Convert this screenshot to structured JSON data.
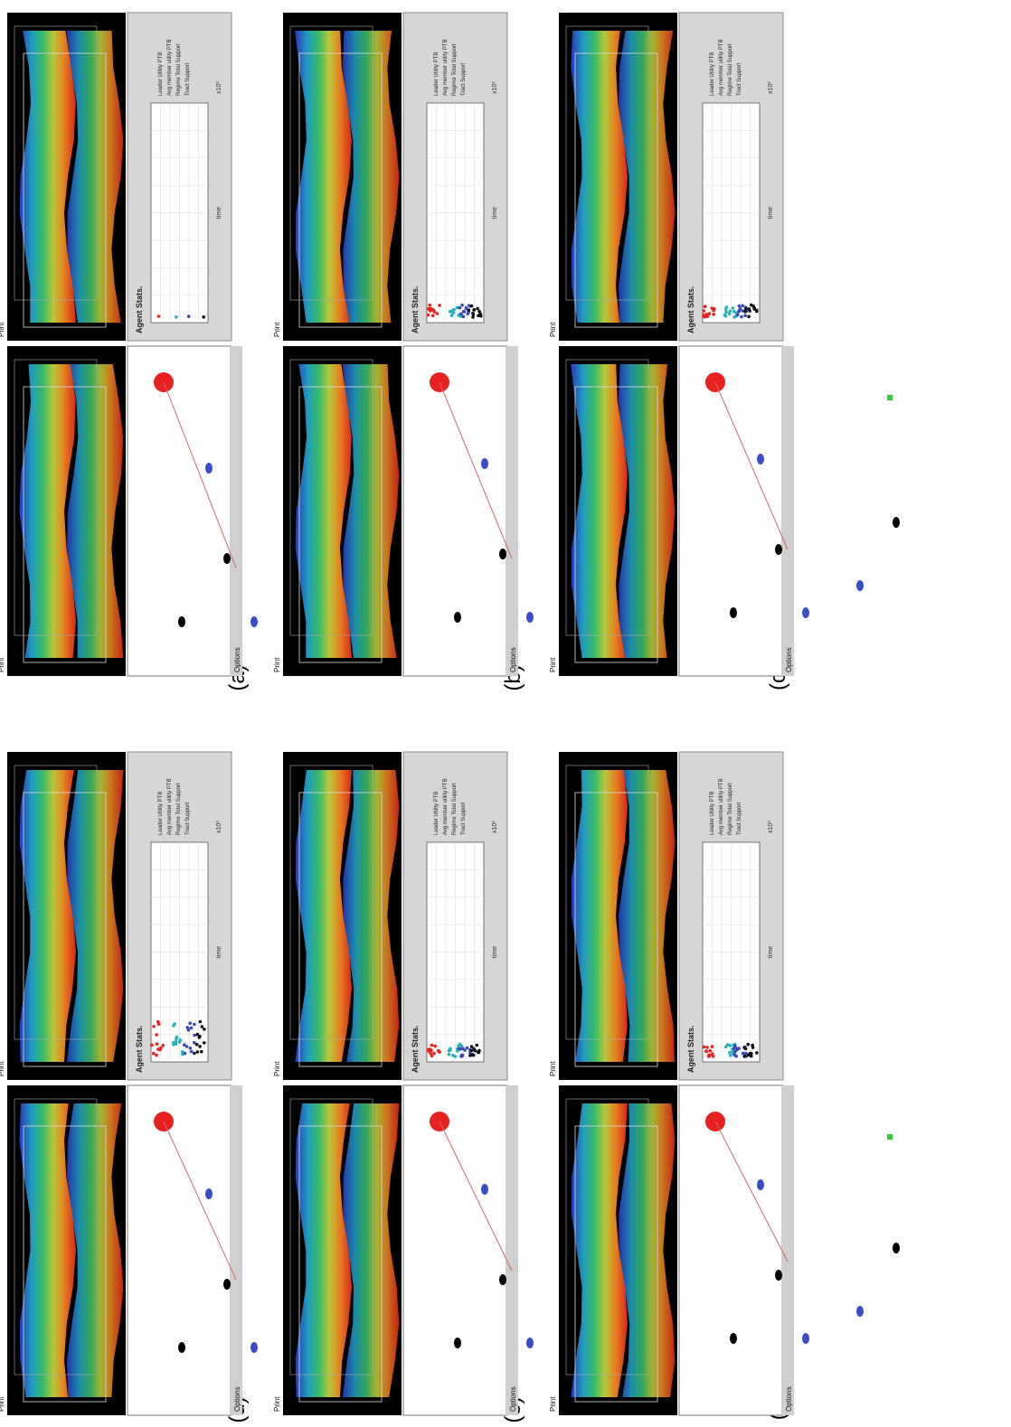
{
  "labels": {
    "options": "Options",
    "print": "Print",
    "agent_stats": "Agent Stats.",
    "time_axis": "time",
    "exponent": "x10³",
    "legend": [
      "Leader Utility PTB",
      "Avg member utility PTB",
      "Regime Total Support",
      "Tract Support"
    ]
  },
  "colors": {
    "leader": "#e82020",
    "member": "#22b2b8",
    "regime": "#3848b8",
    "tract": "#101010",
    "green_agent": "#33cc33",
    "link": "#cc6a6a"
  },
  "panels": [
    {
      "caption": "(a)"
    },
    {
      "caption": "(b)"
    },
    {
      "caption": "(c)"
    },
    {
      "caption": "(d)"
    },
    {
      "caption": "(e)"
    },
    {
      "caption": "(f)"
    }
  ]
}
